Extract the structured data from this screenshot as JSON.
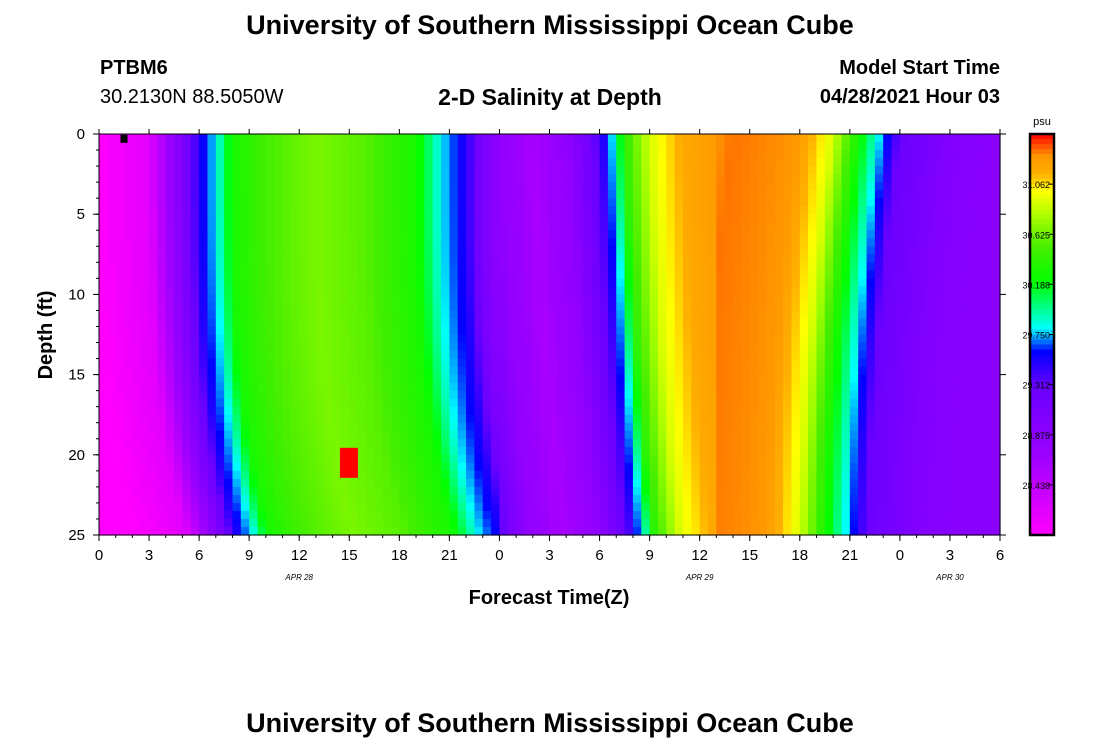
{
  "header": {
    "title": "University of Southern Mississippi Ocean Cube",
    "station_id": "PTBM6",
    "coordinates": "30.2130N  88.5050W",
    "model_start_label": "Model Start Time",
    "model_start_time": "04/28/2021 Hour 03"
  },
  "footer": {
    "title": "University of Southern Mississippi Ocean Cube"
  },
  "chart_data": {
    "type": "heatmap",
    "title": "2-D Salinity at Depth",
    "xlabel": "Forecast Time(Z)",
    "ylabel": "Depth (ft)",
    "x_range_hours": [
      0,
      54
    ],
    "y_range_ft": [
      0,
      25
    ],
    "x_ticks": [
      "0",
      "3",
      "6",
      "9",
      "12",
      "15",
      "18",
      "21",
      "0",
      "3",
      "6",
      "9",
      "12",
      "15",
      "18",
      "21",
      "0",
      "3",
      "6"
    ],
    "x_tick_hours": [
      0,
      3,
      6,
      9,
      12,
      15,
      18,
      21,
      24,
      27,
      30,
      33,
      36,
      39,
      42,
      45,
      48,
      51,
      54
    ],
    "y_ticks": [
      "0",
      "5",
      "10",
      "15",
      "20",
      "25"
    ],
    "y_tick_values": [
      0,
      5,
      10,
      15,
      20,
      25
    ],
    "date_labels": [
      {
        "text": "APR 28",
        "hour": 12
      },
      {
        "text": "APR 29",
        "hour": 36
      },
      {
        "text": "APR 30",
        "hour": 51
      }
    ],
    "colorbar": {
      "unit": "psu",
      "ticks": [
        "31.062",
        "30.625",
        "30.188",
        "29.750",
        "29.312",
        "28.875",
        "28.438"
      ],
      "tick_values": [
        31.062,
        30.625,
        30.188,
        29.75,
        29.312,
        28.875,
        28.438
      ],
      "range": [
        28.0,
        31.5
      ]
    },
    "palette": [
      {
        "v": 28.0,
        "color": "#ff00ff"
      },
      {
        "v": 28.7,
        "color": "#9a00ff"
      },
      {
        "v": 29.3,
        "color": "#6a00ff"
      },
      {
        "v": 29.6,
        "color": "#0000ff"
      },
      {
        "v": 29.8,
        "color": "#00ffff"
      },
      {
        "v": 30.2,
        "color": "#00ff00"
      },
      {
        "v": 30.5,
        "color": "#44ee00"
      },
      {
        "v": 30.8,
        "color": "#b0ff00"
      },
      {
        "v": 31.0,
        "color": "#ffff00"
      },
      {
        "v": 31.15,
        "color": "#ffb000"
      },
      {
        "v": 31.3,
        "color": "#ff9a00"
      },
      {
        "v": 31.5,
        "color": "#ff0000"
      }
    ],
    "salinity_profile": {
      "description": "surface salinity (psu) by forecast hour; lower layers lag in time",
      "hours": [
        0,
        3,
        4.5,
        6,
        7,
        8,
        10,
        13,
        16,
        19,
        20.5,
        22,
        23,
        24,
        26,
        28,
        30,
        30.8,
        31.5,
        33,
        35,
        38,
        42,
        44,
        46,
        48,
        51,
        54
      ],
      "salinity": [
        28.0,
        28.2,
        28.8,
        29.5,
        29.8,
        30.3,
        30.5,
        30.65,
        30.55,
        30.3,
        29.8,
        29.5,
        29.1,
        28.8,
        28.6,
        28.8,
        29.4,
        29.8,
        30.4,
        30.9,
        31.2,
        31.35,
        31.3,
        30.9,
        30.1,
        29.3,
        29.0,
        28.9
      ]
    },
    "markers": [
      {
        "hour": 1.5,
        "depth": 0.3,
        "color": "#000000"
      },
      {
        "hour": 14.5,
        "depth": 20.5,
        "color": "#ff0000"
      }
    ]
  }
}
